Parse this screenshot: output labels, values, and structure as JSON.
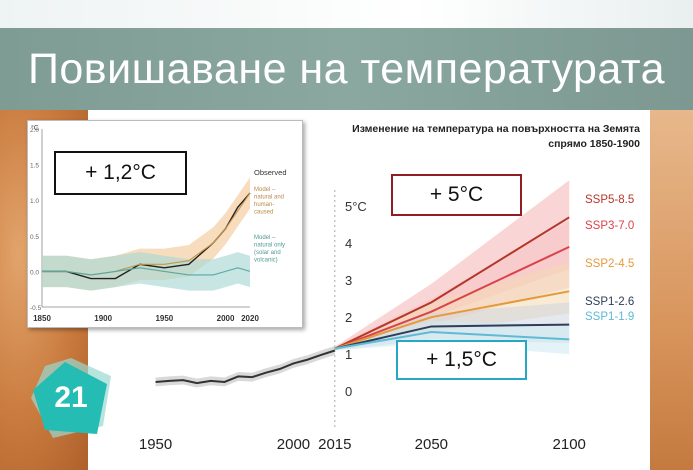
{
  "slide": {
    "title": "Повишаване на температурата",
    "number": "21"
  },
  "callouts": {
    "observed_warming": "+ 1,2°C",
    "high_scenario": "+ 5°C",
    "low_scenario": "+ 1,5°C"
  },
  "colors": {
    "title_bar": "#8aa8a0",
    "ssp5": "#b5362b",
    "ssp3": "#d9434a",
    "ssp2": "#e59a3a",
    "ssp126": "#2e3d5c",
    "ssp119": "#5fbad6",
    "historical": "#333333",
    "badge": "#27c0b8"
  },
  "chart_data": [
    {
      "type": "line",
      "title": "Изменение на температура на повърхността на Земята спрямо 1850-1900",
      "xlabel": "",
      "ylabel": "",
      "x_ticks": [
        "1950",
        "2000",
        "2015",
        "2050",
        "2100"
      ],
      "y_ticks": [
        "0",
        "1",
        "2",
        "3",
        "4",
        "5°C"
      ],
      "xlim": [
        1940,
        2105
      ],
      "ylim": [
        -0.4,
        5.6
      ],
      "historical": {
        "x": [
          1950,
          1955,
          1960,
          1965,
          1970,
          1975,
          1980,
          1985,
          1990,
          1995,
          2000,
          2005,
          2010,
          2015
        ],
        "values": [
          0.25,
          0.28,
          0.3,
          0.22,
          0.28,
          0.25,
          0.4,
          0.38,
          0.5,
          0.6,
          0.75,
          0.85,
          0.98,
          1.1
        ]
      },
      "series": [
        {
          "name": "SSP5-8.5",
          "x": [
            2015,
            2050,
            2100
          ],
          "values": [
            1.15,
            2.4,
            4.7
          ],
          "band_low": [
            1.1,
            2.0,
            3.3
          ],
          "band_high": [
            1.2,
            2.9,
            5.7
          ]
        },
        {
          "name": "SSP3-7.0",
          "x": [
            2015,
            2050,
            2100
          ],
          "values": [
            1.15,
            2.15,
            3.9
          ],
          "band_low": [
            1.1,
            1.8,
            2.8
          ],
          "band_high": [
            1.2,
            2.5,
            4.6
          ]
        },
        {
          "name": "SSP2-4.5",
          "x": [
            2015,
            2050,
            2100
          ],
          "values": [
            1.15,
            2.0,
            2.7
          ],
          "band_low": [
            1.1,
            1.6,
            2.1
          ],
          "band_high": [
            1.2,
            2.4,
            3.5
          ]
        },
        {
          "name": "SSP1-2.6",
          "x": [
            2015,
            2050,
            2100
          ],
          "values": [
            1.15,
            1.75,
            1.8
          ],
          "band_low": [
            1.1,
            1.4,
            1.3
          ],
          "band_high": [
            1.2,
            2.1,
            2.4
          ]
        },
        {
          "name": "SSP1-1.9",
          "x": [
            2015,
            2050,
            2100
          ],
          "values": [
            1.15,
            1.6,
            1.4
          ],
          "band_low": [
            1.1,
            1.3,
            1.0
          ],
          "band_high": [
            1.2,
            1.9,
            1.8
          ]
        }
      ]
    },
    {
      "type": "line",
      "ylabel": "°C",
      "x_ticks": [
        "1850",
        "1900",
        "1950",
        "2000",
        "2020"
      ],
      "y_ticks": [
        "-0.5",
        "0.0",
        "0.5",
        "1.0",
        "1.5",
        "2.0"
      ],
      "xlim": [
        1850,
        2020
      ],
      "ylim": [
        -0.5,
        2.0
      ],
      "series": [
        {
          "name": "Observed",
          "x": [
            1850,
            1870,
            1890,
            1910,
            1930,
            1950,
            1970,
            1990,
            2000,
            2010,
            2020
          ],
          "values": [
            0.0,
            0.0,
            -0.1,
            -0.1,
            0.1,
            0.05,
            0.1,
            0.4,
            0.6,
            0.9,
            1.1
          ]
        },
        {
          "name": "Model – natural and human-caused",
          "x": [
            1850,
            1870,
            1890,
            1910,
            1930,
            1950,
            1970,
            1990,
            2000,
            2010,
            2020
          ],
          "values": [
            0.0,
            0.0,
            -0.05,
            0.0,
            0.1,
            0.1,
            0.15,
            0.4,
            0.6,
            0.85,
            1.1
          ]
        },
        {
          "name": "Model – natural only (solar and volcanic)",
          "x": [
            1850,
            1870,
            1890,
            1910,
            1930,
            1950,
            1970,
            1990,
            2000,
            2010,
            2020
          ],
          "values": [
            0.0,
            0.0,
            -0.05,
            0.0,
            0.05,
            0.0,
            -0.05,
            -0.05,
            0.0,
            0.05,
            0.0
          ]
        }
      ]
    }
  ]
}
